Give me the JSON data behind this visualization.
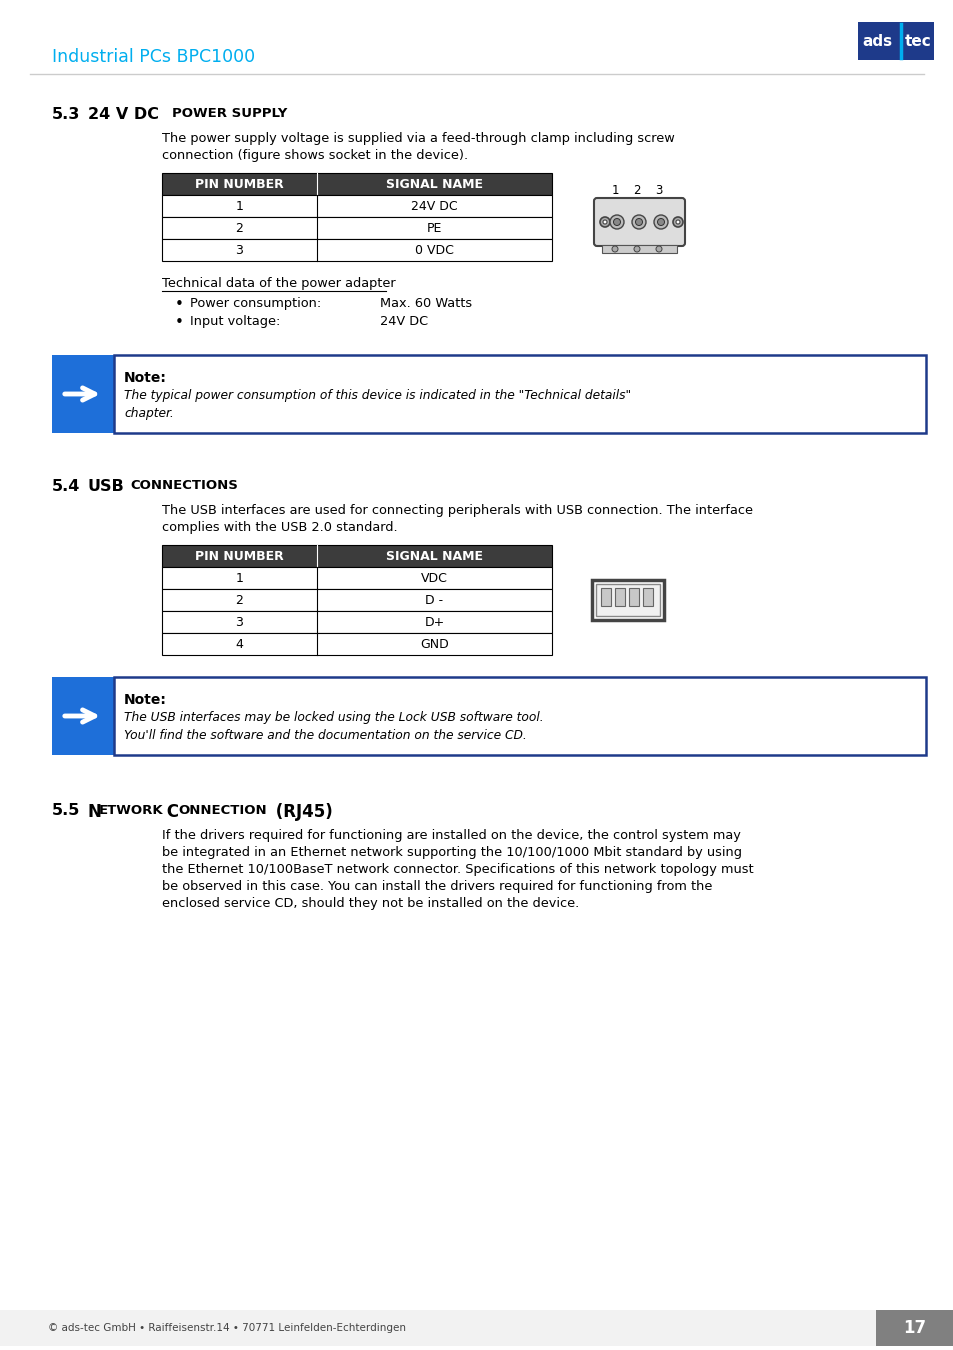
{
  "header_title": "Industrial PCs BPC1000",
  "header_color": "#00AEEF",
  "logo_bg": "#1E3A8A",
  "header_line_color": "#CCCCCC",
  "section_53_body1": "The power supply voltage is supplied via a feed-through clamp including screw",
  "section_53_body2": "connection (figure shows socket in the device).",
  "table1_rows": [
    [
      "1",
      "24V DC"
    ],
    [
      "2",
      "PE"
    ],
    [
      "3",
      "0 VDC"
    ]
  ],
  "table_header_bg": "#3C3C3C",
  "table_header_fg": "#FFFFFF",
  "table_border": "#000000",
  "tech_data_heading": "Technical data of the power adapter",
  "tech_data_items": [
    [
      "Power consumption:",
      "Max. 60 Watts"
    ],
    [
      "Input voltage:",
      "24V DC"
    ]
  ],
  "note1_label": "Note:",
  "note1_line1": "The typical power consumption of this device is indicated in the \"Technical details\"",
  "note1_line2": "chapter.",
  "note_border": "#1E3A8A",
  "note_arrow_bg": "#1E6FD9",
  "section_54_body1": "The USB interfaces are used for connecting peripherals with USB connection. The interface",
  "section_54_body2": "complies with the USB 2.0 standard.",
  "table2_rows": [
    [
      "1",
      "VDC"
    ],
    [
      "2",
      "D -"
    ],
    [
      "3",
      "D+"
    ],
    [
      "4",
      "GND"
    ]
  ],
  "note2_label": "Note:",
  "note2_line1": "The USB interfaces may be locked using the Lock USB software tool.",
  "note2_line2": "You'll find the software and the documentation on the service CD.",
  "section_55_body_lines": [
    "If the drivers required for functioning are installed on the device, the control system may",
    "be integrated in an Ethernet network supporting the 10/100/1000 Mbit standard by using",
    "the Ethernet 10/100BaseT network connector. Specifications of this network topology must",
    "be observed in this case. You can install the drivers required for functioning from the",
    "enclosed service CD, should they not be installed on the device."
  ],
  "footer_text": "© ads-tec GmbH • Raiffeisenstr.14 • 70771 Leinfelden-Echterdingen",
  "footer_page": "17",
  "footer_bg": "#808080",
  "page_bg": "#FFFFFF",
  "body_text_color": "#000000"
}
